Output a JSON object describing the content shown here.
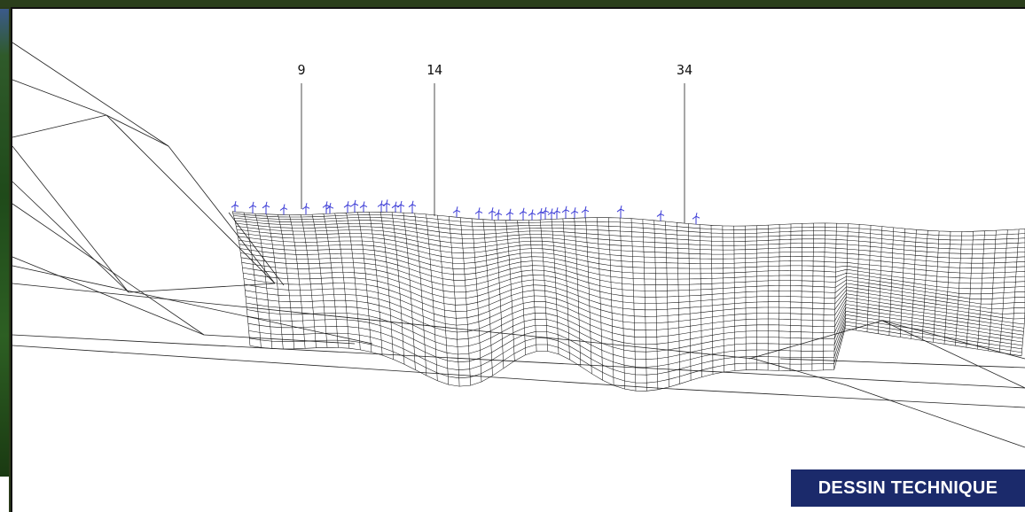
{
  "badge": {
    "label": "DESSIN TECHNIQUE"
  },
  "markers": [
    {
      "label": "9"
    },
    {
      "label": "14"
    },
    {
      "label": "34"
    }
  ],
  "colors": {
    "badge_bg": "#1b2a6b",
    "turbine": "#3a3ad6",
    "wire": "#111111"
  }
}
